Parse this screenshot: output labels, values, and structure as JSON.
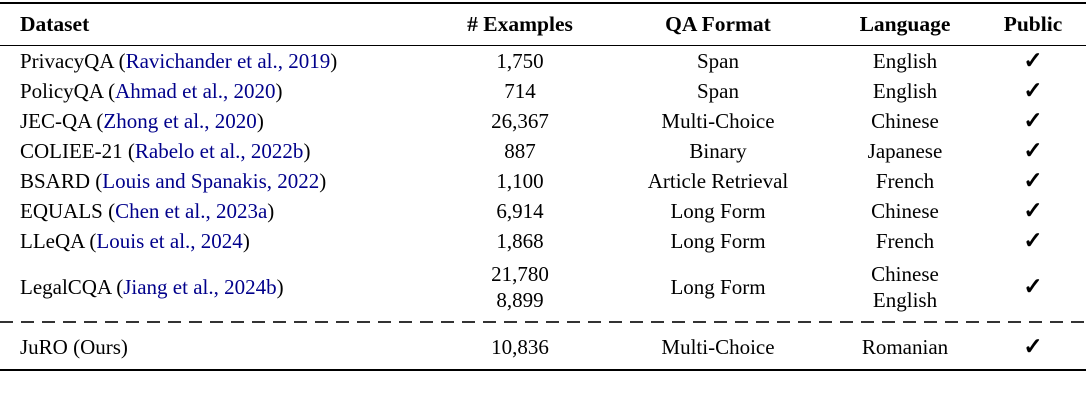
{
  "table": {
    "header": {
      "dataset": "Dataset",
      "examples": "# Examples",
      "qa_format": "QA Format",
      "language": "Language",
      "public": "Public"
    },
    "rows": [
      {
        "dataset_prefix": "PrivacyQA (",
        "citation": "Ravichander et al., 2019",
        "dataset_suffix": ")",
        "examples": [
          "1,750"
        ],
        "qa_format": "Span",
        "languages": [
          "English"
        ],
        "public": "✓"
      },
      {
        "dataset_prefix": "PolicyQA (",
        "citation": "Ahmad et al., 2020",
        "dataset_suffix": ")",
        "examples": [
          "714"
        ],
        "qa_format": "Span",
        "languages": [
          "English"
        ],
        "public": "✓"
      },
      {
        "dataset_prefix": "JEC-QA (",
        "citation": "Zhong et al., 2020",
        "dataset_suffix": ")",
        "examples": [
          "26,367"
        ],
        "qa_format": "Multi-Choice",
        "languages": [
          "Chinese"
        ],
        "public": "✓"
      },
      {
        "dataset_prefix": "COLIEE-21 (",
        "citation": "Rabelo et al., 2022b",
        "dataset_suffix": ")",
        "examples": [
          "887"
        ],
        "qa_format": "Binary",
        "languages": [
          "Japanese"
        ],
        "public": "✓"
      },
      {
        "dataset_prefix": "BSARD (",
        "citation": "Louis and Spanakis, 2022",
        "dataset_suffix": ")",
        "examples": [
          "1,100"
        ],
        "qa_format": "Article Retrieval",
        "languages": [
          "French"
        ],
        "public": "✓"
      },
      {
        "dataset_prefix": "EQUALS (",
        "citation": "Chen et al., 2023a",
        "dataset_suffix": ")",
        "examples": [
          "6,914"
        ],
        "qa_format": "Long Form",
        "languages": [
          "Chinese"
        ],
        "public": "✓"
      },
      {
        "dataset_prefix": "LLeQA (",
        "citation": "Louis et al., 2024",
        "dataset_suffix": ")",
        "examples": [
          "1,868"
        ],
        "qa_format": "Long Form",
        "languages": [
          "French"
        ],
        "public": "✓"
      },
      {
        "dataset_prefix": "LegalCQA (",
        "citation": "Jiang et al., 2024b",
        "dataset_suffix": ")",
        "examples": [
          "21,780",
          "8,899"
        ],
        "qa_format": "Long Form",
        "languages": [
          "Chinese",
          "English"
        ],
        "public": "✓"
      },
      {
        "dataset_prefix": "JuRO (Ours)",
        "citation": "",
        "dataset_suffix": "",
        "examples": [
          "10,836"
        ],
        "qa_format": "Multi-Choice",
        "languages": [
          "Romanian"
        ],
        "public": "✓"
      }
    ],
    "check_glyph": "✓",
    "colors": {
      "citation_link": "#00008B",
      "text": "#000000",
      "rule": "#000000",
      "dashed_divider": "#333333"
    }
  }
}
